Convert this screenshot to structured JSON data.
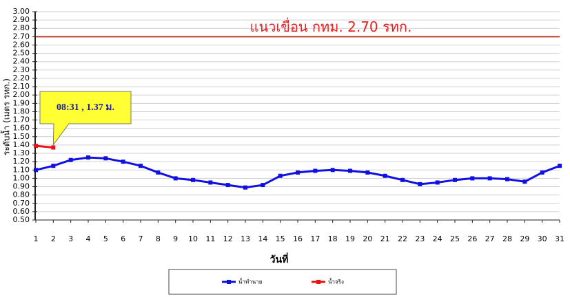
{
  "chart_data": {
    "type": "line",
    "y_label": "ระดับน้ำ (เมตร รทก.)",
    "x_label": "วันที่",
    "categories": [
      "1",
      "2",
      "3",
      "4",
      "5",
      "6",
      "7",
      "8",
      "9",
      "10",
      "11",
      "12",
      "13",
      "14",
      "15",
      "16",
      "17",
      "18",
      "19",
      "20",
      "21",
      "22",
      "23",
      "24",
      "25",
      "26",
      "27",
      "28",
      "29",
      "30",
      "31"
    ],
    "series": [
      {
        "name": "น้ำทำนาย",
        "color": "#1010e0",
        "values": [
          1.1,
          1.15,
          1.22,
          1.25,
          1.24,
          1.2,
          1.15,
          1.07,
          1.0,
          0.98,
          0.95,
          0.92,
          0.89,
          0.92,
          1.03,
          1.07,
          1.09,
          1.1,
          1.09,
          1.07,
          1.03,
          0.98,
          0.93,
          0.95,
          0.98,
          1.0,
          1.0,
          0.99,
          0.96,
          1.07,
          1.15
        ]
      },
      {
        "name": "น้ำจริง",
        "color": "#ee1111",
        "values": [
          1.39,
          1.37,
          null,
          null,
          null,
          null,
          null,
          null,
          null,
          null,
          null,
          null,
          null,
          null,
          null,
          null,
          null,
          null,
          null,
          null,
          null,
          null,
          null,
          null,
          null,
          null,
          null,
          null,
          null,
          null,
          null
        ]
      }
    ],
    "reference_line": {
      "value": 2.7,
      "label": "แนวเขื่อน กทม. 2.70 รทก.",
      "color": "#c0392b"
    },
    "annotation": "08:31 , 1.37 ม.",
    "ylim": [
      0.5,
      3.0
    ],
    "yticks": [
      {
        "value": 0.5,
        "label": "0.50"
      },
      {
        "value": 0.6,
        "label": "0.60"
      },
      {
        "value": 0.7,
        "label": "0.70"
      },
      {
        "value": 0.8,
        "label": "0.80"
      },
      {
        "value": 0.9,
        "label": "0.90"
      },
      {
        "value": 1.0,
        "label": "1.00"
      },
      {
        "value": 1.1,
        "label": "1.10"
      },
      {
        "value": 1.2,
        "label": "1.20"
      },
      {
        "value": 1.3,
        "label": "1.30"
      },
      {
        "value": 1.4,
        "label": "1.40"
      },
      {
        "value": 1.5,
        "label": "1.50"
      },
      {
        "value": 1.6,
        "label": "1.60"
      },
      {
        "value": 1.7,
        "label": "1.70"
      },
      {
        "value": 1.8,
        "label": "1.80"
      },
      {
        "value": 1.9,
        "label": "1.90"
      },
      {
        "value": 2.0,
        "label": "2.00"
      },
      {
        "value": 2.1,
        "label": "2.10"
      },
      {
        "value": 2.2,
        "label": "2.20"
      },
      {
        "value": 2.3,
        "label": "2.30"
      },
      {
        "value": 2.4,
        "label": "2.40"
      },
      {
        "value": 2.5,
        "label": "2.50"
      },
      {
        "value": 2.6,
        "label": "2.60"
      },
      {
        "value": 2.7,
        "label": "2.70"
      },
      {
        "value": 2.8,
        "label": "2.80"
      },
      {
        "value": 2.9,
        "label": "2.90"
      },
      {
        "value": 3.0,
        "label": "3.00"
      }
    ],
    "grid": true
  }
}
